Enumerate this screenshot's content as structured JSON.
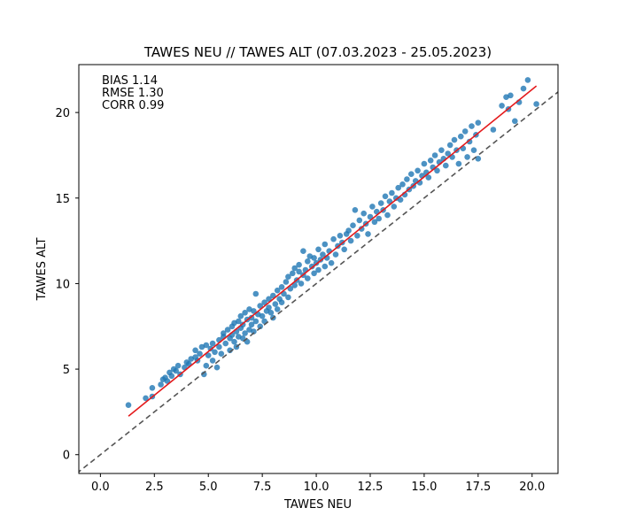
{
  "chart_data": {
    "type": "scatter",
    "title": "TAWES NEU // TAWES ALT (07.03.2023 - 25.05.2023)",
    "xlabel": "TAWES NEU",
    "ylabel": "TAWES ALT",
    "xlim": [
      -1.0,
      21.2
    ],
    "ylim": [
      -1.1,
      22.8
    ],
    "xticks": [
      0.0,
      2.5,
      5.0,
      7.5,
      10.0,
      12.5,
      15.0,
      17.5,
      20.0
    ],
    "xtick_labels": [
      "0.0",
      "2.5",
      "5.0",
      "7.5",
      "10.0",
      "12.5",
      "15.0",
      "17.5",
      "20.0"
    ],
    "yticks": [
      0,
      5,
      10,
      15,
      20
    ],
    "ytick_labels": [
      "0",
      "5",
      "10",
      "15",
      "20"
    ],
    "stats": [
      "BIAS 1.14",
      "RMSE 1.30",
      "CORR 0.99"
    ],
    "fit_line": {
      "x": [
        1.3,
        20.2
      ],
      "y": [
        2.25,
        21.55
      ],
      "color": "#e41a1c"
    },
    "identity_line": {
      "color": "#555555",
      "style": "dashed"
    },
    "point_color": "#1f77b4",
    "points": [
      [
        1.3,
        2.9
      ],
      [
        2.1,
        3.3
      ],
      [
        2.4,
        3.4
      ],
      [
        2.4,
        3.9
      ],
      [
        2.8,
        4.1
      ],
      [
        2.9,
        4.4
      ],
      [
        3.0,
        4.5
      ],
      [
        3.1,
        4.3
      ],
      [
        3.2,
        4.8
      ],
      [
        3.3,
        4.6
      ],
      [
        3.4,
        5.0
      ],
      [
        3.5,
        4.9
      ],
      [
        3.6,
        5.2
      ],
      [
        3.7,
        4.7
      ],
      [
        3.9,
        5.1
      ],
      [
        4.0,
        5.4
      ],
      [
        4.1,
        5.3
      ],
      [
        4.2,
        5.6
      ],
      [
        4.4,
        5.7
      ],
      [
        4.4,
        6.1
      ],
      [
        4.5,
        5.5
      ],
      [
        4.6,
        5.9
      ],
      [
        4.7,
        6.3
      ],
      [
        4.8,
        4.7
      ],
      [
        4.9,
        5.2
      ],
      [
        4.9,
        6.4
      ],
      [
        5.0,
        5.8
      ],
      [
        5.1,
        6.2
      ],
      [
        5.2,
        5.5
      ],
      [
        5.2,
        6.5
      ],
      [
        5.3,
        6.0
      ],
      [
        5.4,
        5.1
      ],
      [
        5.5,
        6.7
      ],
      [
        5.5,
        6.3
      ],
      [
        5.6,
        5.9
      ],
      [
        5.7,
        6.9
      ],
      [
        5.7,
        7.1
      ],
      [
        5.8,
        6.5
      ],
      [
        5.9,
        7.3
      ],
      [
        6.0,
        6.8
      ],
      [
        6.0,
        6.1
      ],
      [
        6.1,
        7.5
      ],
      [
        6.1,
        7.0
      ],
      [
        6.2,
        6.6
      ],
      [
        6.2,
        7.7
      ],
      [
        6.3,
        6.3
      ],
      [
        6.3,
        7.2
      ],
      [
        6.4,
        7.8
      ],
      [
        6.4,
        6.9
      ],
      [
        6.5,
        7.4
      ],
      [
        6.5,
        8.1
      ],
      [
        6.6,
        6.8
      ],
      [
        6.6,
        7.6
      ],
      [
        6.7,
        7.1
      ],
      [
        6.7,
        8.3
      ],
      [
        6.8,
        6.6
      ],
      [
        6.8,
        7.9
      ],
      [
        6.9,
        7.3
      ],
      [
        6.9,
        8.5
      ],
      [
        7.0,
        7.6
      ],
      [
        7.0,
        8.0
      ],
      [
        7.1,
        7.2
      ],
      [
        7.1,
        8.4
      ],
      [
        7.2,
        7.8
      ],
      [
        7.2,
        9.4
      ],
      [
        7.3,
        8.2
      ],
      [
        7.4,
        7.5
      ],
      [
        7.4,
        8.7
      ],
      [
        7.5,
        8.1
      ],
      [
        7.6,
        8.9
      ],
      [
        7.6,
        7.8
      ],
      [
        7.7,
        8.4
      ],
      [
        7.8,
        8.6
      ],
      [
        7.8,
        9.1
      ],
      [
        7.9,
        8.3
      ],
      [
        8.0,
        8.0
      ],
      [
        8.0,
        9.3
      ],
      [
        8.1,
        8.8
      ],
      [
        8.2,
        9.6
      ],
      [
        8.2,
        8.5
      ],
      [
        8.3,
        9.1
      ],
      [
        8.4,
        9.8
      ],
      [
        8.4,
        8.9
      ],
      [
        8.5,
        9.4
      ],
      [
        8.6,
        10.1
      ],
      [
        8.7,
        9.2
      ],
      [
        8.7,
        10.4
      ],
      [
        8.8,
        9.7
      ],
      [
        8.9,
        10.6
      ],
      [
        9.0,
        9.9
      ],
      [
        9.0,
        10.9
      ],
      [
        9.1,
        10.2
      ],
      [
        9.2,
        10.7
      ],
      [
        9.2,
        11.1
      ],
      [
        9.3,
        10.0
      ],
      [
        9.4,
        10.5
      ],
      [
        9.4,
        11.9
      ],
      [
        9.5,
        10.8
      ],
      [
        9.6,
        11.3
      ],
      [
        9.6,
        10.3
      ],
      [
        9.7,
        11.6
      ],
      [
        9.8,
        11.0
      ],
      [
        9.9,
        11.5
      ],
      [
        9.9,
        10.6
      ],
      [
        10.0,
        11.2
      ],
      [
        10.1,
        10.8
      ],
      [
        10.1,
        12.0
      ],
      [
        10.2,
        11.4
      ],
      [
        10.3,
        11.7
      ],
      [
        10.4,
        11.0
      ],
      [
        10.4,
        12.3
      ],
      [
        10.5,
        11.5
      ],
      [
        10.6,
        11.9
      ],
      [
        10.7,
        11.2
      ],
      [
        10.8,
        12.6
      ],
      [
        10.9,
        11.7
      ],
      [
        11.0,
        12.2
      ],
      [
        11.1,
        12.8
      ],
      [
        11.2,
        12.4
      ],
      [
        11.3,
        12.0
      ],
      [
        11.4,
        12.9
      ],
      [
        11.5,
        13.1
      ],
      [
        11.6,
        12.5
      ],
      [
        11.7,
        13.4
      ],
      [
        11.8,
        14.3
      ],
      [
        11.9,
        12.8
      ],
      [
        12.0,
        13.7
      ],
      [
        12.1,
        13.2
      ],
      [
        12.2,
        14.1
      ],
      [
        12.3,
        13.5
      ],
      [
        12.4,
        12.9
      ],
      [
        12.5,
        13.9
      ],
      [
        12.6,
        14.5
      ],
      [
        12.7,
        13.6
      ],
      [
        12.8,
        14.2
      ],
      [
        12.9,
        13.8
      ],
      [
        13.0,
        14.7
      ],
      [
        13.1,
        14.3
      ],
      [
        13.2,
        15.1
      ],
      [
        13.3,
        14.0
      ],
      [
        13.4,
        14.8
      ],
      [
        13.5,
        15.3
      ],
      [
        13.6,
        14.5
      ],
      [
        13.7,
        15.0
      ],
      [
        13.8,
        15.6
      ],
      [
        13.9,
        14.9
      ],
      [
        14.0,
        15.8
      ],
      [
        14.1,
        15.2
      ],
      [
        14.2,
        16.1
      ],
      [
        14.3,
        15.5
      ],
      [
        14.4,
        16.4
      ],
      [
        14.5,
        15.7
      ],
      [
        14.6,
        16.0
      ],
      [
        14.7,
        16.6
      ],
      [
        14.8,
        15.9
      ],
      [
        14.9,
        16.3
      ],
      [
        15.0,
        17.0
      ],
      [
        15.1,
        16.5
      ],
      [
        15.2,
        16.2
      ],
      [
        15.3,
        17.2
      ],
      [
        15.4,
        16.8
      ],
      [
        15.5,
        17.5
      ],
      [
        15.6,
        16.6
      ],
      [
        15.7,
        17.1
      ],
      [
        15.8,
        17.8
      ],
      [
        15.9,
        17.3
      ],
      [
        16.0,
        16.9
      ],
      [
        16.1,
        17.6
      ],
      [
        16.2,
        18.1
      ],
      [
        16.3,
        17.4
      ],
      [
        16.4,
        18.4
      ],
      [
        16.5,
        17.8
      ],
      [
        16.6,
        17.0
      ],
      [
        16.7,
        18.6
      ],
      [
        16.8,
        17.9
      ],
      [
        16.9,
        18.9
      ],
      [
        17.0,
        17.4
      ],
      [
        17.1,
        18.3
      ],
      [
        17.2,
        19.2
      ],
      [
        17.3,
        17.8
      ],
      [
        17.4,
        18.7
      ],
      [
        17.5,
        17.3
      ],
      [
        17.5,
        19.4
      ],
      [
        18.2,
        19.0
      ],
      [
        18.6,
        20.4
      ],
      [
        18.8,
        20.9
      ],
      [
        18.9,
        20.2
      ],
      [
        19.0,
        21.0
      ],
      [
        19.2,
        19.5
      ],
      [
        19.4,
        20.6
      ],
      [
        19.6,
        21.4
      ],
      [
        19.8,
        21.9
      ],
      [
        20.2,
        20.5
      ]
    ]
  }
}
